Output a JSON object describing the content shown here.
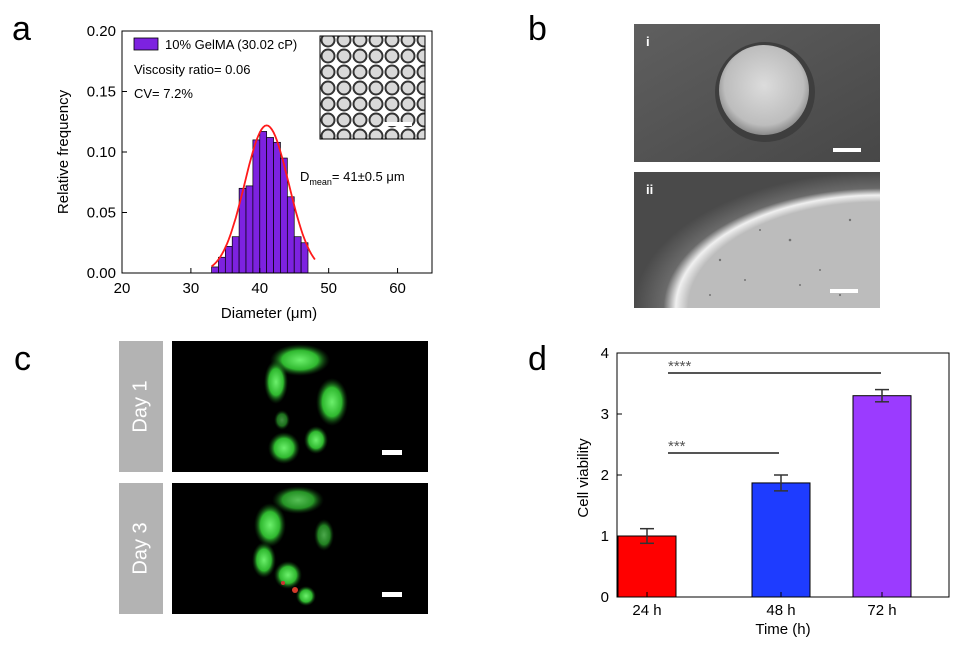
{
  "panels": {
    "a": "a",
    "b": "b",
    "c": "c",
    "d": "d"
  },
  "panel_a": {
    "legend": "10% GelMA (30.02 cP)",
    "viscosity_ratio": "Viscosity ratio= 0.06",
    "cv": "CV= 7.2%",
    "dmean_prefix": "D",
    "dmean_sub": "mean",
    "dmean_value": "= 41±0.5 μm"
  },
  "panel_b": {
    "sub_i": "i",
    "sub_ii": "ii"
  },
  "panel_c": {
    "day1": "Day 1",
    "day3": "Day 3"
  },
  "panel_d": {
    "sig_72": "****",
    "sig_48": "***"
  },
  "colors": {
    "hist_fill": "#7d22e0",
    "fit_curve": "#ff1a1a",
    "bar_24h": "#ff0000",
    "bar_48h": "#1e3cff",
    "bar_72h": "#9b3bff",
    "day_label_bg": "#b3b3b3",
    "fluorescence": "#3fd13f"
  },
  "chart_data": [
    {
      "type": "bar",
      "id": "histogram",
      "xlabel": "Diameter (μm)",
      "ylabel": "Relative frequency",
      "xlim": [
        20,
        65
      ],
      "ylim": [
        0,
        0.2
      ],
      "xticks": [
        "20",
        "30",
        "40",
        "50",
        "60"
      ],
      "yticks": [
        "0.00",
        "0.05",
        "0.10",
        "0.15",
        "0.20"
      ],
      "bins": [
        {
          "x": 33.5,
          "value": 0.005
        },
        {
          "x": 34.5,
          "value": 0.013
        },
        {
          "x": 35.5,
          "value": 0.022
        },
        {
          "x": 36.5,
          "value": 0.03
        },
        {
          "x": 37.5,
          "value": 0.07
        },
        {
          "x": 38.5,
          "value": 0.072
        },
        {
          "x": 39.5,
          "value": 0.11
        },
        {
          "x": 40.5,
          "value": 0.117
        },
        {
          "x": 41.5,
          "value": 0.112
        },
        {
          "x": 42.5,
          "value": 0.108
        },
        {
          "x": 43.5,
          "value": 0.095
        },
        {
          "x": 44.5,
          "value": 0.063
        },
        {
          "x": 45.5,
          "value": 0.03
        },
        {
          "x": 46.5,
          "value": 0.025
        }
      ],
      "fit": {
        "mean": 41,
        "sd": 3.2,
        "peak": 0.122,
        "xmin": 33,
        "xmax": 48
      }
    },
    {
      "type": "bar",
      "id": "viability",
      "xlabel": "Time (h)",
      "ylabel": "Cell viability",
      "categories": [
        "24 h",
        "48 h",
        "72 h"
      ],
      "values": [
        1.0,
        1.87,
        3.3
      ],
      "errors": [
        0.12,
        0.13,
        0.1
      ],
      "ylim": [
        0,
        4
      ],
      "yticks": [
        "0",
        "1",
        "2",
        "3",
        "4"
      ]
    }
  ]
}
